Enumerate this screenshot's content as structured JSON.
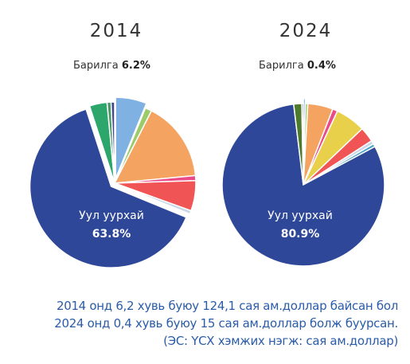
{
  "footnote": {
    "line1": "2014 онд 6,2 хувь буюу 124,1 сая ам.доллар байсан бол",
    "line2": "2024 онд 0,4 хувь буюу 15 сая ам.доллар болж буурсан.",
    "line3": "(ЭС: ҮСХ хэмжих нэгж: сая ам.доллар)"
  },
  "chart_data": [
    {
      "type": "pie",
      "title": "2014",
      "callout": {
        "label": "Барилга",
        "value": "6.2%"
      },
      "main_label": {
        "label": "Уул уурхай",
        "value": "63.8%"
      },
      "slices": [
        {
          "label": "Барилга",
          "value": 6.2,
          "color": "#7fb1e3"
        },
        {
          "label": "",
          "value": 1.3,
          "color": "#9ccc6a"
        },
        {
          "label": "",
          "value": 16.0,
          "color": "#f4a460"
        },
        {
          "label": "",
          "value": 1.0,
          "color": "#e94c87"
        },
        {
          "label": "",
          "value": 6.0,
          "color": "#f05454"
        },
        {
          "label": "",
          "value": 0.7,
          "color": "#c9d6e6"
        },
        {
          "label": "Уул уурхай",
          "value": 63.8,
          "color": "#2e4799"
        },
        {
          "label": "",
          "value": 3.5,
          "color": "#2da66c"
        },
        {
          "label": "",
          "value": 0.8,
          "color": "#4a9a68"
        },
        {
          "label": "",
          "value": 0.7,
          "color": "#404a8a"
        }
      ]
    },
    {
      "type": "pie",
      "title": "2024",
      "callout": {
        "label": "Барилга",
        "value": "0.4%"
      },
      "main_label": {
        "label": "Уул уурхай",
        "value": "80.9%"
      },
      "slices": [
        {
          "label": "Барилга",
          "value": 0.4,
          "color": "#7fb1e3"
        },
        {
          "label": "",
          "value": 0.5,
          "color": "#9ccc6a"
        },
        {
          "label": "",
          "value": 5.0,
          "color": "#f4a460"
        },
        {
          "label": "",
          "value": 1.0,
          "color": "#e94c87"
        },
        {
          "label": "",
          "value": 6.0,
          "color": "#e8d04a"
        },
        {
          "label": "",
          "value": 3.0,
          "color": "#f05454"
        },
        {
          "label": "",
          "value": 0.7,
          "color": "#c9d6e6"
        },
        {
          "label": "",
          "value": 0.6,
          "color": "#4aa3c9"
        },
        {
          "label": "Уул уурхай",
          "value": 80.9,
          "color": "#2e4799"
        },
        {
          "label": "",
          "value": 1.6,
          "color": "#4e7a2c"
        },
        {
          "label": "",
          "value": 0.3,
          "color": "#3a3a6a"
        }
      ]
    }
  ]
}
